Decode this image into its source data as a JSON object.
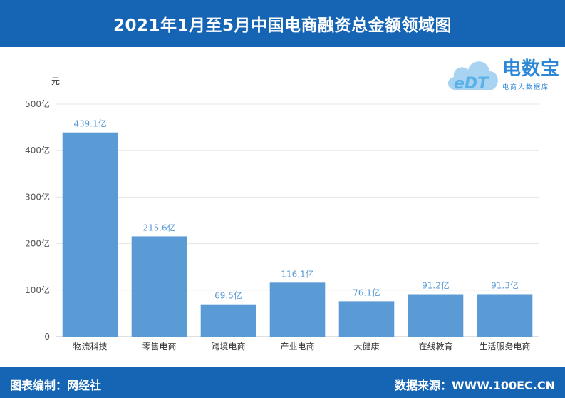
{
  "header": {
    "title": "2021年1月至5月中国电商融资总金额领域图"
  },
  "footer": {
    "left": "图表编制：网经社",
    "right": "数据来源：WWW.100EC.CN"
  },
  "logo": {
    "mark": "eDT",
    "title": "电数宝",
    "subtitle": "电商大数据库",
    "accent": "#2c87d6"
  },
  "colors": {
    "bar": "#5b9bd5",
    "label": "#5b9bd5",
    "header": "#1565b4"
  },
  "chart_data": {
    "type": "bar",
    "unit_label": "元",
    "categories": [
      "物流科技",
      "零售电商",
      "跨境电商",
      "产业电商",
      "大健康",
      "在线教育",
      "生活服务电商"
    ],
    "values": [
      439.1,
      215.6,
      69.5,
      116.1,
      76.1,
      91.2,
      91.3
    ],
    "data_labels": [
      "439.1亿",
      "215.6亿",
      "69.5亿",
      "116.1亿",
      "76.1亿",
      "91.2亿",
      "91.3亿"
    ],
    "ylim": [
      0,
      500
    ],
    "yticks": [
      0,
      100,
      200,
      300,
      400,
      500
    ],
    "ytick_labels": [
      "0",
      "100亿",
      "200亿",
      "300亿",
      "400亿",
      "500亿"
    ],
    "grid": true
  }
}
